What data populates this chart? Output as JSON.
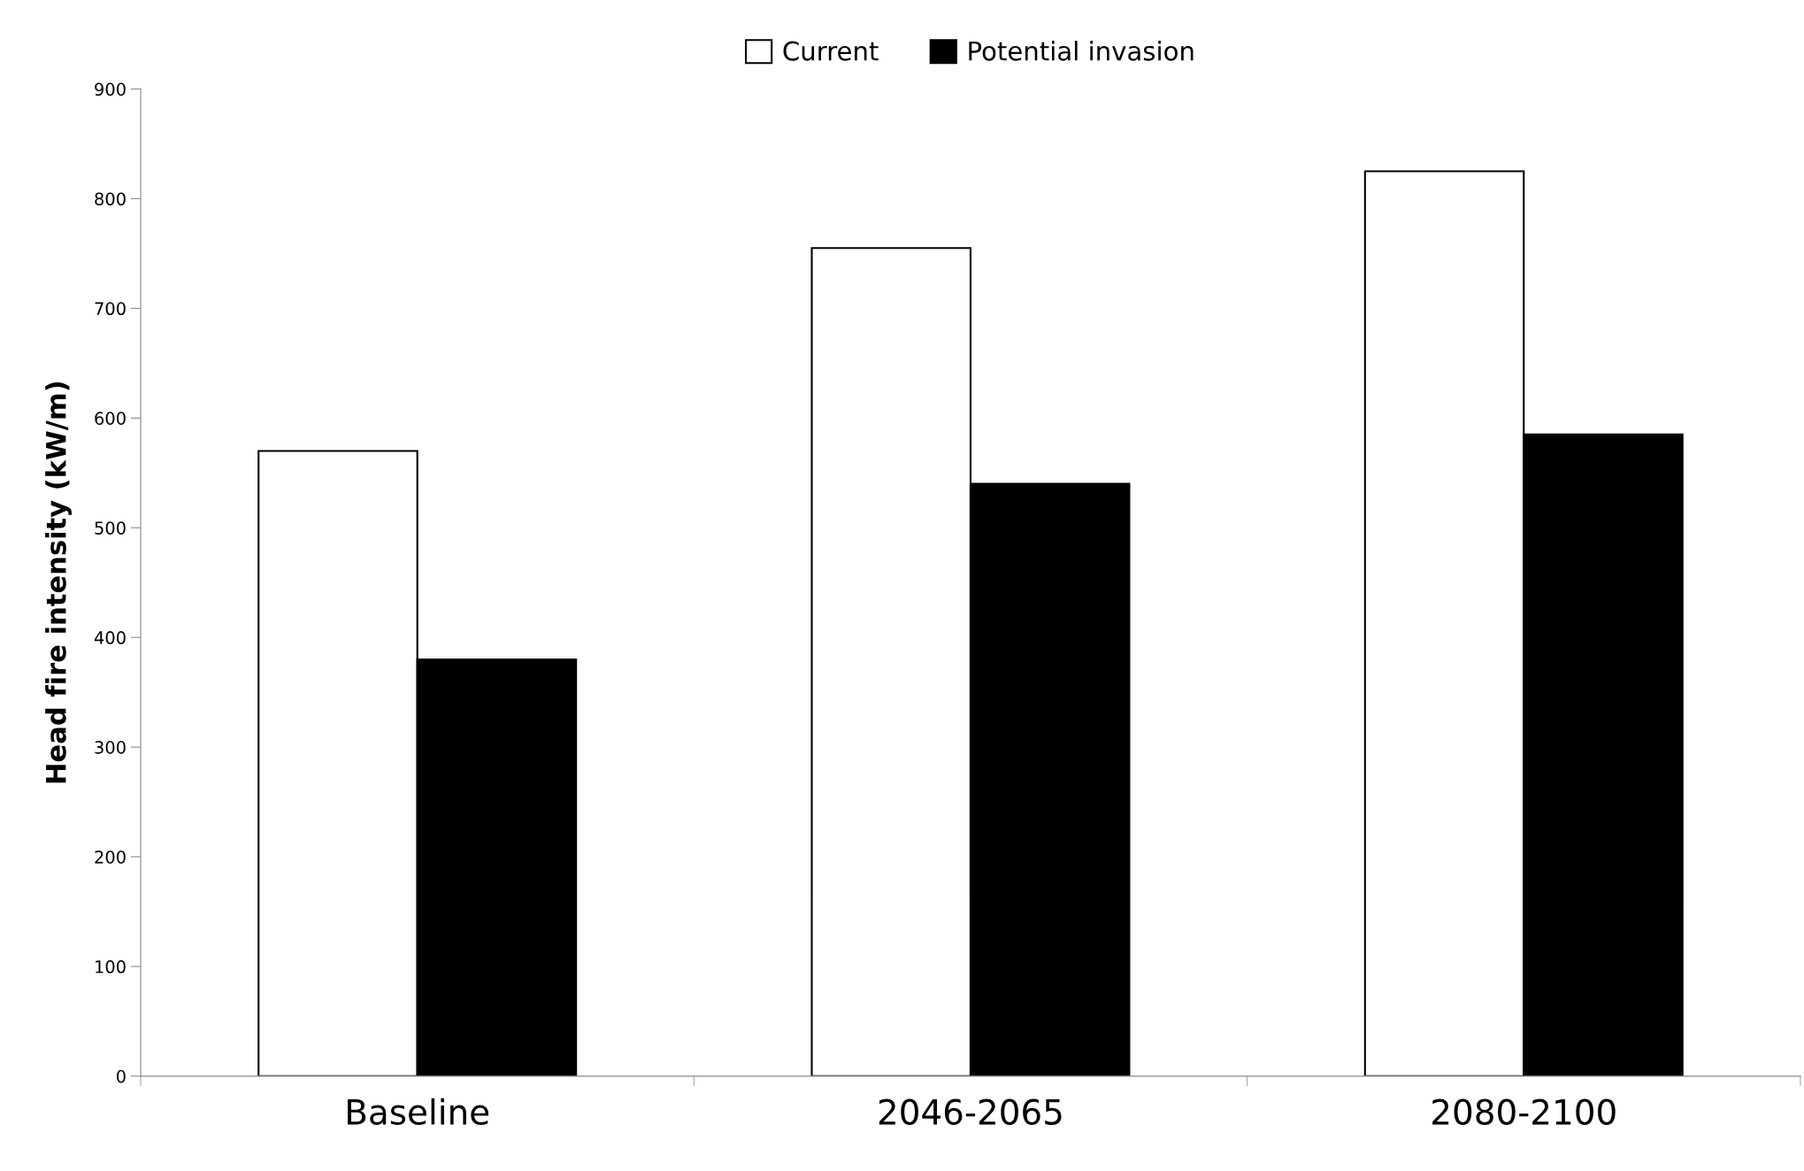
{
  "chart_data": {
    "type": "bar",
    "ylabel": "Head fire intensity (kW/m)",
    "categories": [
      "Baseline",
      "2046-2065",
      "2080-2100"
    ],
    "series": [
      {
        "name": "Current",
        "color": "#ffffff",
        "values": [
          570,
          755,
          825
        ]
      },
      {
        "name": "Potential invasion",
        "color": "#000000",
        "values": [
          380,
          540,
          585
        ]
      }
    ],
    "ylim": [
      0,
      900
    ],
    "yticks": [
      0,
      100,
      200,
      300,
      400,
      500,
      600,
      700,
      800,
      900
    ],
    "grid": false,
    "legend": "top"
  }
}
